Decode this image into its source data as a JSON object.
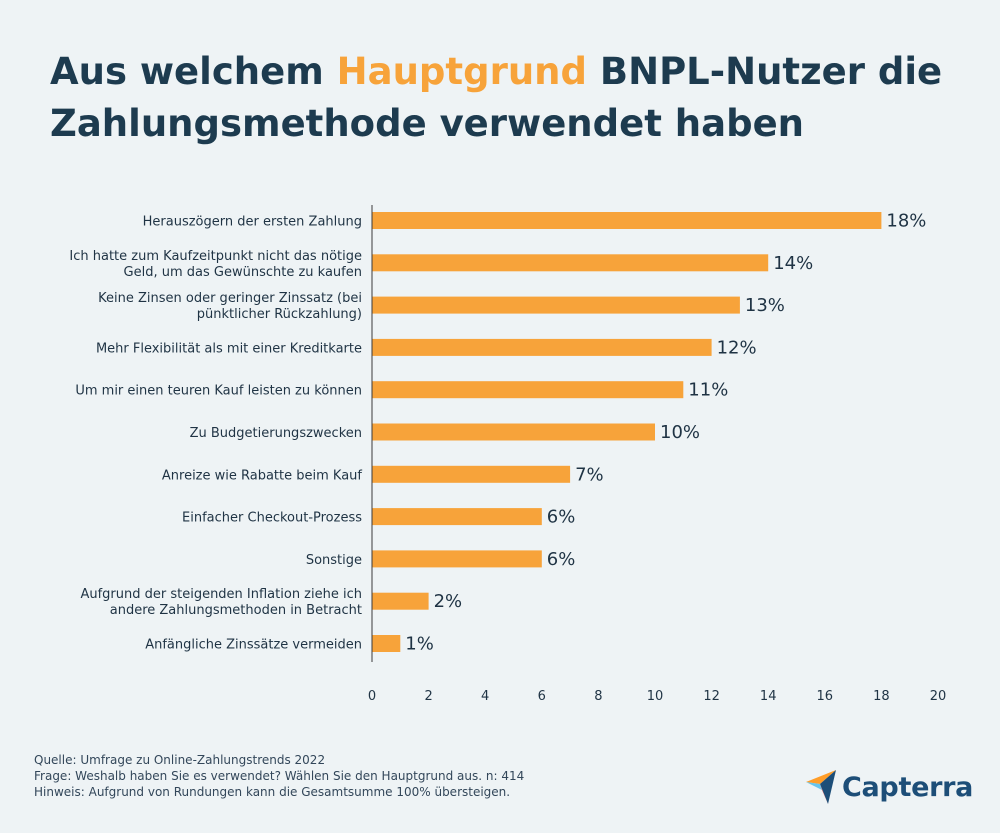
{
  "title": {
    "part1": "Aus welchem ",
    "highlight": "Hauptgrund",
    "part2": " BNPL-Nutzer die Zahlungsmethode verwendet haben"
  },
  "colors": {
    "bar": "#f7a33a",
    "highlight": "#f7a33a",
    "title": "#1d3b4f",
    "logo": "#1d4e78"
  },
  "chart_data": {
    "type": "bar",
    "orientation": "horizontal",
    "categories": [
      [
        "Herauszögern der ersten Zahlung"
      ],
      [
        "Ich hatte zum Kaufzeitpunkt nicht das nötige",
        "Geld, um das Gewünschte zu kaufen"
      ],
      [
        "Keine Zinsen oder geringer Zinssatz (bei",
        "pünktlicher Rückzahlung)"
      ],
      [
        "Mehr Flexibilität als mit einer Kreditkarte"
      ],
      [
        "Um mir einen teuren Kauf leisten zu können"
      ],
      [
        "Zu Budgetierungszwecken"
      ],
      [
        "Anreize wie Rabatte beim Kauf"
      ],
      [
        "Einfacher Checkout-Prozess"
      ],
      [
        "Sonstige"
      ],
      [
        "Aufgrund der steigenden Inflation ziehe ich",
        "andere Zahlungsmethoden in Betracht"
      ],
      [
        "Anfängliche Zinssätze vermeiden"
      ]
    ],
    "values": [
      18,
      14,
      13,
      12,
      11,
      10,
      7,
      6,
      6,
      2,
      1
    ],
    "value_labels": [
      "18%",
      "14%",
      "13%",
      "12%",
      "11%",
      "10%",
      "7%",
      "6%",
      "6%",
      "2%",
      "1%"
    ],
    "xlim": [
      0,
      20
    ],
    "xticks": [
      0,
      2,
      4,
      6,
      8,
      10,
      12,
      14,
      16,
      18,
      20
    ],
    "grid": false
  },
  "footer": {
    "source": "Quelle: Umfrage zu Online-Zahlungstrends 2022",
    "question": "Frage: Weshalb haben Sie es verwendet? Wählen Sie den Hauptgrund aus. n: 414",
    "note": "Hinweis: Aufgrund von Rundungen kann die Gesamtsumme 100% übersteigen."
  },
  "logo": {
    "text": "Capterra",
    "icon": "capterra-arrow-icon"
  }
}
